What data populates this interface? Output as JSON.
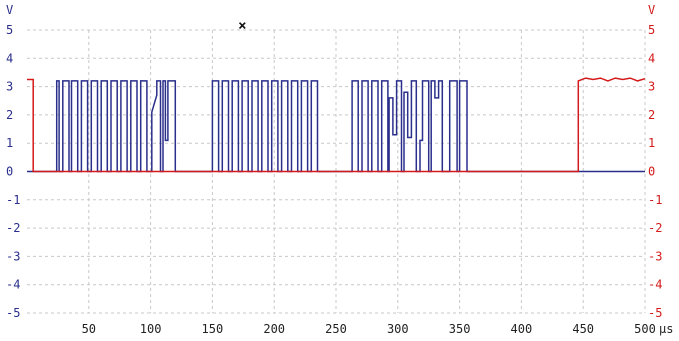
{
  "chart_data": {
    "type": "line",
    "title": "",
    "xlabel": "µs",
    "x_unit_label": "µs",
    "xlim": [
      0,
      500
    ],
    "x_ticks": [
      50,
      100,
      150,
      200,
      250,
      300,
      350,
      400,
      450,
      500
    ],
    "y_left": {
      "label": "V",
      "lim": [
        -5,
        5
      ],
      "ticks": [
        5,
        4,
        3,
        2,
        1,
        0,
        -1,
        -2,
        -3,
        -4,
        -5
      ],
      "color": "#2a2f8c"
    },
    "y_right": {
      "label": "V",
      "lim": [
        -5,
        5
      ],
      "ticks": [
        5,
        4,
        3,
        2,
        1,
        0,
        -1,
        -2,
        -3,
        -4,
        -5
      ],
      "color": "#d41a1a"
    },
    "grid": true,
    "cursor_marker": {
      "symbol": "×",
      "x": 174
    },
    "series": [
      {
        "color": "#2a2f8c",
        "points": [
          [
            0,
            0
          ],
          [
            24,
            0
          ],
          [
            24,
            3.2
          ],
          [
            26,
            3.2
          ],
          [
            26,
            0
          ],
          [
            29,
            0
          ],
          [
            29,
            3.2
          ],
          [
            34,
            3.2
          ],
          [
            34,
            0
          ],
          [
            36,
            0
          ],
          [
            36,
            3.2
          ],
          [
            41,
            3.2
          ],
          [
            41,
            0
          ],
          [
            44,
            0
          ],
          [
            44,
            3.2
          ],
          [
            49,
            3.2
          ],
          [
            49,
            0
          ],
          [
            52,
            0
          ],
          [
            52,
            3.2
          ],
          [
            57,
            3.2
          ],
          [
            57,
            0
          ],
          [
            60,
            0
          ],
          [
            60,
            3.2
          ],
          [
            65,
            3.2
          ],
          [
            65,
            0
          ],
          [
            68,
            0
          ],
          [
            68,
            3.2
          ],
          [
            73,
            3.2
          ],
          [
            73,
            0
          ],
          [
            76,
            0
          ],
          [
            76,
            3.2
          ],
          [
            81,
            3.2
          ],
          [
            81,
            0
          ],
          [
            84,
            0
          ],
          [
            84,
            3.2
          ],
          [
            89,
            3.2
          ],
          [
            89,
            0
          ],
          [
            92,
            0
          ],
          [
            92,
            3.2
          ],
          [
            97,
            3.2
          ],
          [
            97,
            0
          ],
          [
            101,
            0
          ],
          [
            101,
            2.1
          ],
          [
            105,
            2.7
          ],
          [
            105,
            3.2
          ],
          [
            108,
            3.2
          ],
          [
            108,
            0
          ],
          [
            110,
            0
          ],
          [
            110,
            3.2
          ],
          [
            112,
            3.2
          ],
          [
            112,
            1.1
          ],
          [
            114,
            1.1
          ],
          [
            114,
            3.2
          ],
          [
            120,
            3.2
          ],
          [
            120,
            0
          ],
          [
            150,
            0
          ],
          [
            150,
            3.2
          ],
          [
            155,
            3.2
          ],
          [
            155,
            0
          ],
          [
            158,
            0
          ],
          [
            158,
            3.2
          ],
          [
            163,
            3.2
          ],
          [
            163,
            0
          ],
          [
            166,
            0
          ],
          [
            166,
            3.2
          ],
          [
            171,
            3.2
          ],
          [
            171,
            0
          ],
          [
            174,
            0
          ],
          [
            174,
            3.2
          ],
          [
            179,
            3.2
          ],
          [
            179,
            0
          ],
          [
            182,
            0
          ],
          [
            182,
            3.2
          ],
          [
            187,
            3.2
          ],
          [
            187,
            0
          ],
          [
            190,
            0
          ],
          [
            190,
            3.2
          ],
          [
            195,
            3.2
          ],
          [
            195,
            0
          ],
          [
            198,
            0
          ],
          [
            198,
            3.2
          ],
          [
            203,
            3.2
          ],
          [
            203,
            0
          ],
          [
            206,
            0
          ],
          [
            206,
            3.2
          ],
          [
            211,
            3.2
          ],
          [
            211,
            0
          ],
          [
            214,
            0
          ],
          [
            214,
            3.2
          ],
          [
            219,
            3.2
          ],
          [
            219,
            0
          ],
          [
            222,
            0
          ],
          [
            222,
            3.2
          ],
          [
            227,
            3.2
          ],
          [
            227,
            0
          ],
          [
            230,
            0
          ],
          [
            230,
            3.2
          ],
          [
            235,
            3.2
          ],
          [
            235,
            0
          ],
          [
            263,
            0
          ],
          [
            263,
            3.2
          ],
          [
            268,
            3.2
          ],
          [
            268,
            0
          ],
          [
            271,
            0
          ],
          [
            271,
            3.2
          ],
          [
            276,
            3.2
          ],
          [
            276,
            0
          ],
          [
            279,
            0
          ],
          [
            279,
            3.2
          ],
          [
            284,
            3.2
          ],
          [
            284,
            0
          ],
          [
            287,
            0
          ],
          [
            287,
            3.2
          ],
          [
            292,
            3.2
          ],
          [
            292,
            0
          ],
          [
            293,
            0
          ],
          [
            293,
            2.6
          ],
          [
            296,
            2.6
          ],
          [
            296,
            1.3
          ],
          [
            299,
            1.3
          ],
          [
            299,
            3.2
          ],
          [
            303,
            3.2
          ],
          [
            303,
            0
          ],
          [
            305,
            0
          ],
          [
            305,
            2.8
          ],
          [
            308,
            2.8
          ],
          [
            308,
            1.2
          ],
          [
            311,
            1.2
          ],
          [
            311,
            3.2
          ],
          [
            315,
            3.2
          ],
          [
            315,
            0
          ],
          [
            318,
            0
          ],
          [
            318,
            1.1
          ],
          [
            320,
            1.1
          ],
          [
            320,
            3.2
          ],
          [
            325,
            3.2
          ],
          [
            325,
            0
          ],
          [
            327,
            0
          ],
          [
            327,
            3.2
          ],
          [
            330,
            3.2
          ],
          [
            330,
            2.6
          ],
          [
            333,
            2.6
          ],
          [
            333,
            3.2
          ],
          [
            336,
            3.2
          ],
          [
            336,
            0
          ],
          [
            342,
            0
          ],
          [
            342,
            3.2
          ],
          [
            348,
            3.2
          ],
          [
            348,
            0
          ],
          [
            350,
            0
          ],
          [
            350,
            3.2
          ],
          [
            356,
            3.2
          ],
          [
            356,
            0
          ],
          [
            500,
            0
          ]
        ]
      },
      {
        "color": "#d41a1a",
        "points": [
          [
            0,
            3.25
          ],
          [
            5,
            3.25
          ],
          [
            5,
            0
          ],
          [
            446,
            0
          ],
          [
            446,
            3.2
          ],
          [
            452,
            3.3
          ],
          [
            458,
            3.25
          ],
          [
            464,
            3.3
          ],
          [
            470,
            3.2
          ],
          [
            476,
            3.3
          ],
          [
            482,
            3.25
          ],
          [
            488,
            3.3
          ],
          [
            494,
            3.2
          ],
          [
            500,
            3.28
          ]
        ]
      }
    ]
  }
}
